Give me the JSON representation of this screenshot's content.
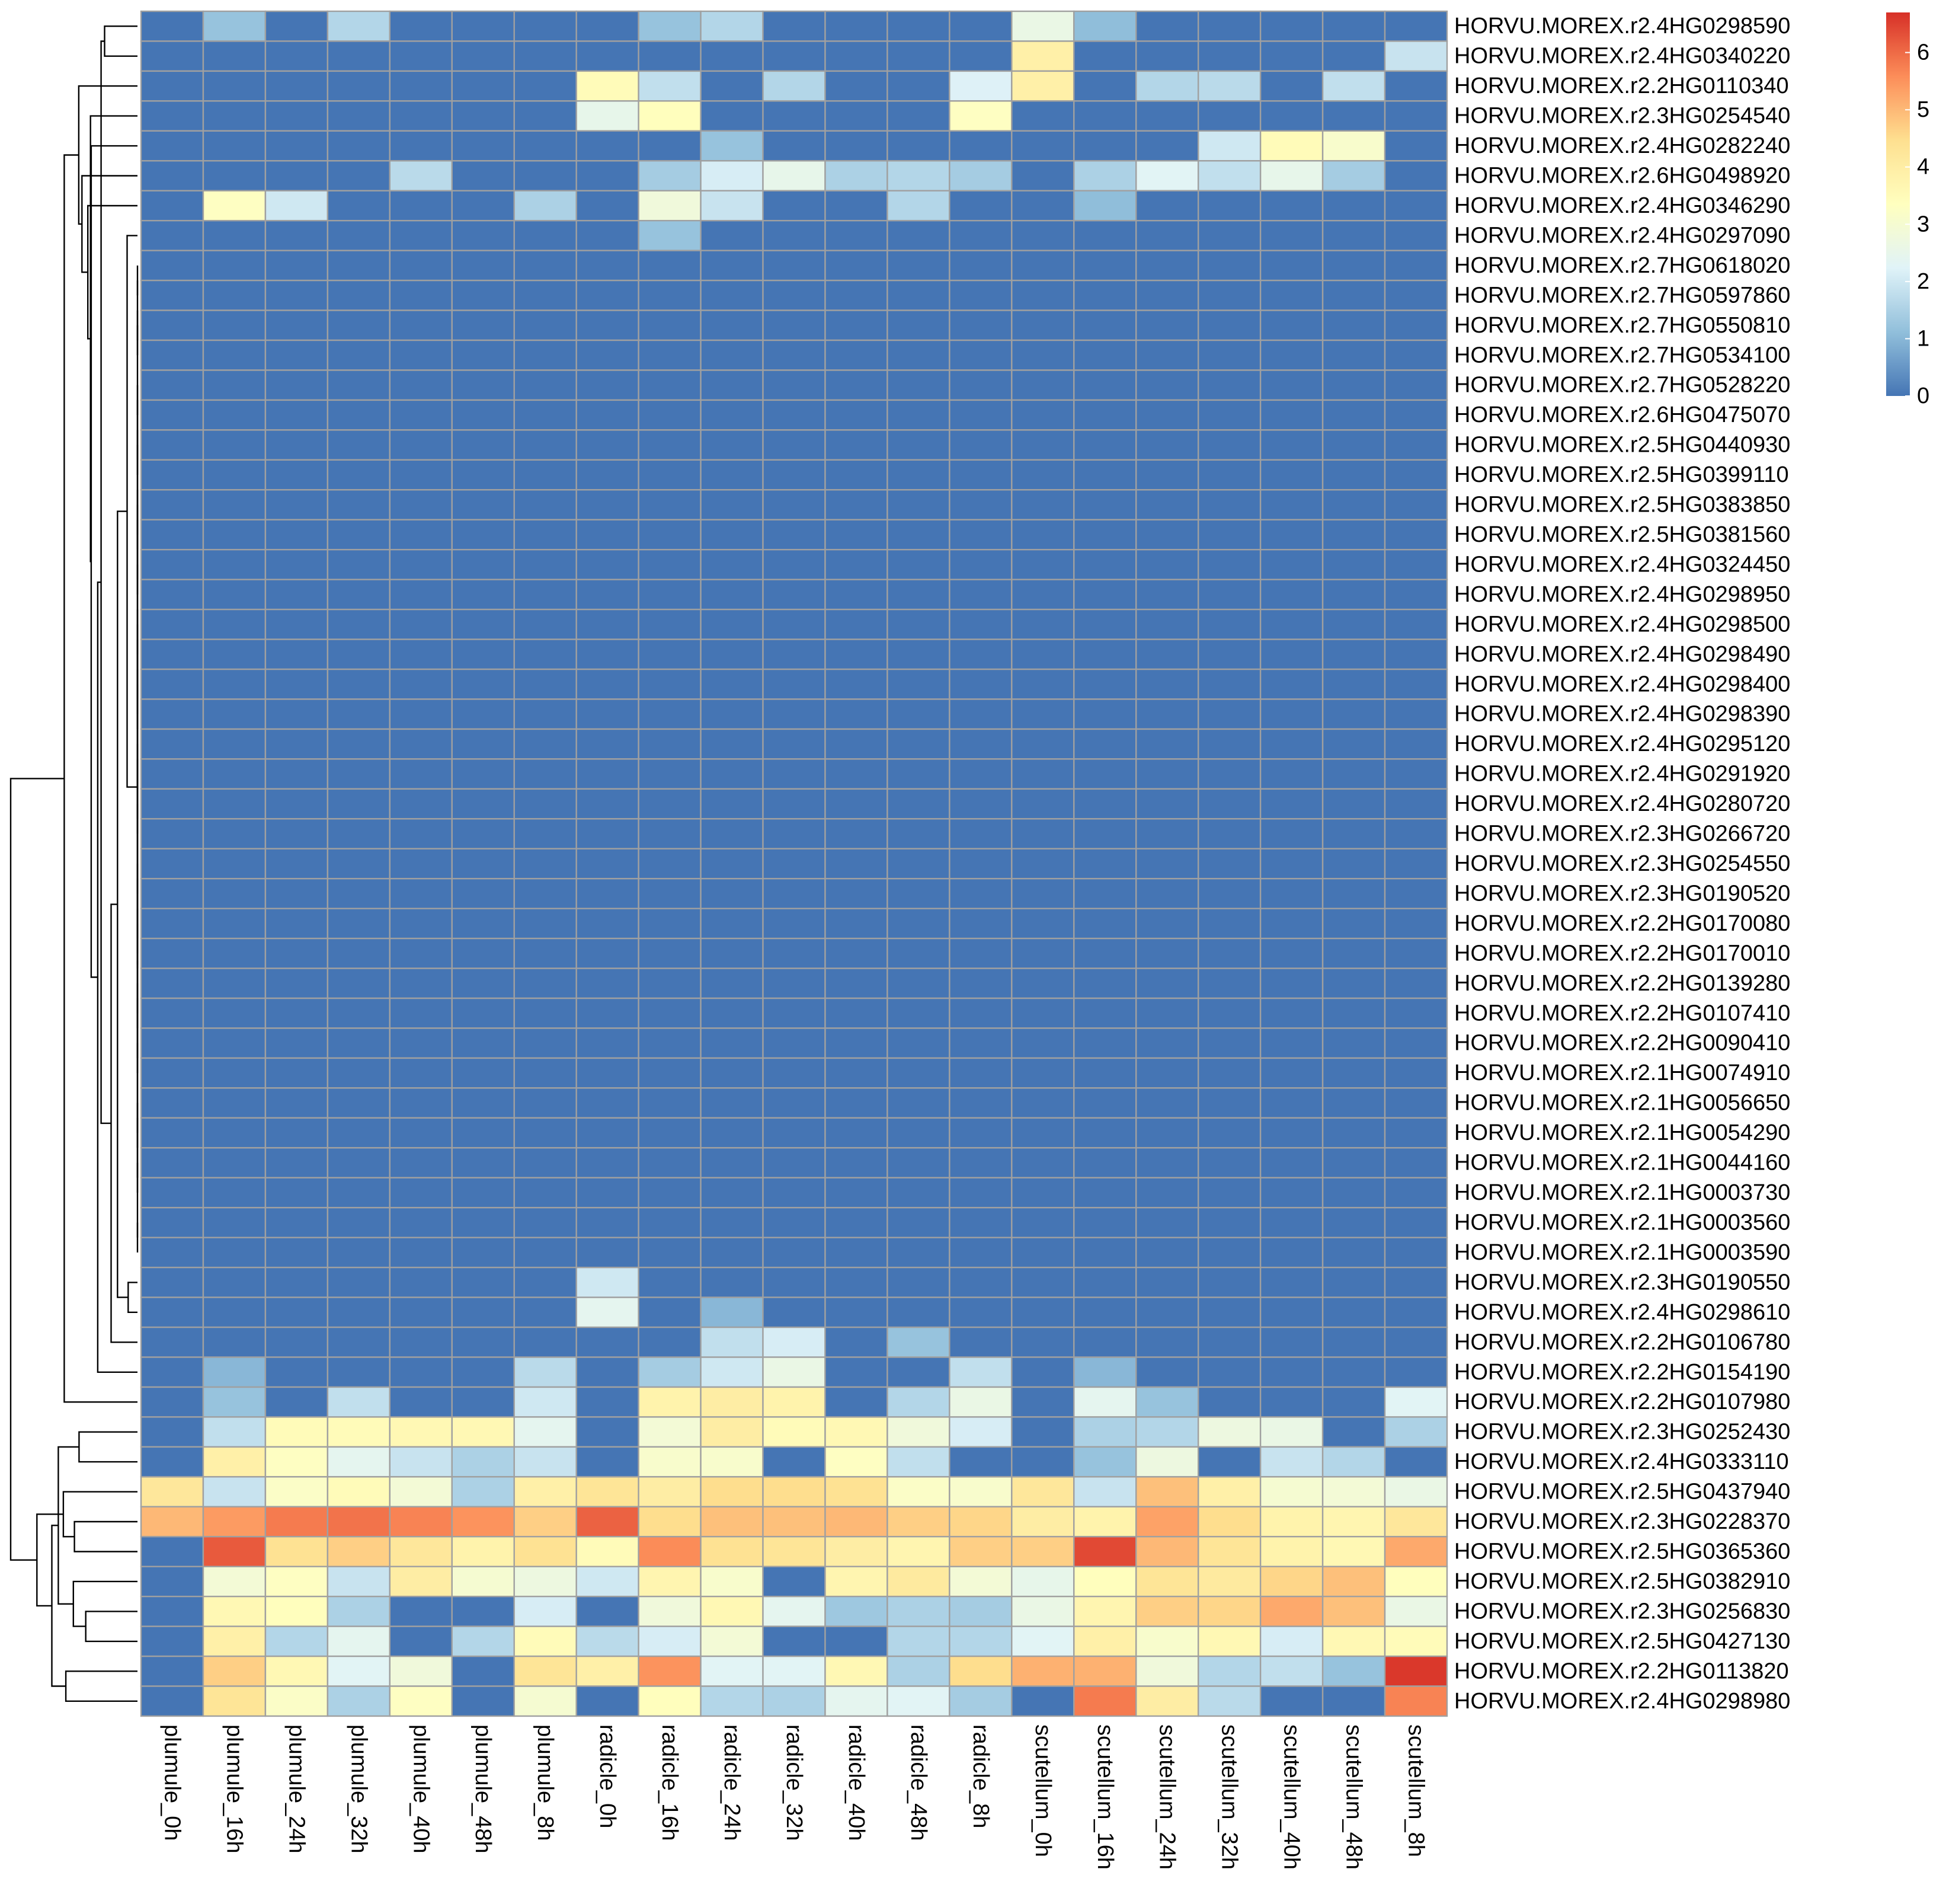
{
  "chart_data": {
    "type": "heatmap",
    "title": "",
    "xlabel": "",
    "ylabel": "",
    "columns": [
      "plumule_0h",
      "plumule_16h",
      "plumule_24h",
      "plumule_32h",
      "plumule_40h",
      "plumule_48h",
      "plumule_8h",
      "radicle_0h",
      "radicle_16h",
      "radicle_24h",
      "radicle_32h",
      "radicle_40h",
      "radicle_48h",
      "radicle_8h",
      "scutellum_0h",
      "scutellum_16h",
      "scutellum_24h",
      "scutellum_32h",
      "scutellum_40h",
      "scutellum_48h",
      "scutellum_8h"
    ],
    "rows": [
      "HORVU.MOREX.r2.4HG0298590",
      "HORVU.MOREX.r2.4HG0340220",
      "HORVU.MOREX.r2.2HG0110340",
      "HORVU.MOREX.r2.3HG0254540",
      "HORVU.MOREX.r2.4HG0282240",
      "HORVU.MOREX.r2.6HG0498920",
      "HORVU.MOREX.r2.4HG0346290",
      "HORVU.MOREX.r2.4HG0297090",
      "HORVU.MOREX.r2.7HG0618020",
      "HORVU.MOREX.r2.7HG0597860",
      "HORVU.MOREX.r2.7HG0550810",
      "HORVU.MOREX.r2.7HG0534100",
      "HORVU.MOREX.r2.7HG0528220",
      "HORVU.MOREX.r2.6HG0475070",
      "HORVU.MOREX.r2.5HG0440930",
      "HORVU.MOREX.r2.5HG0399110",
      "HORVU.MOREX.r2.5HG0383850",
      "HORVU.MOREX.r2.5HG0381560",
      "HORVU.MOREX.r2.4HG0324450",
      "HORVU.MOREX.r2.4HG0298950",
      "HORVU.MOREX.r2.4HG0298500",
      "HORVU.MOREX.r2.4HG0298490",
      "HORVU.MOREX.r2.4HG0298400",
      "HORVU.MOREX.r2.4HG0298390",
      "HORVU.MOREX.r2.4HG0295120",
      "HORVU.MOREX.r2.4HG0291920",
      "HORVU.MOREX.r2.4HG0280720",
      "HORVU.MOREX.r2.3HG0266720",
      "HORVU.MOREX.r2.3HG0254550",
      "HORVU.MOREX.r2.3HG0190520",
      "HORVU.MOREX.r2.2HG0170080",
      "HORVU.MOREX.r2.2HG0170010",
      "HORVU.MOREX.r2.2HG0139280",
      "HORVU.MOREX.r2.2HG0107410",
      "HORVU.MOREX.r2.2HG0090410",
      "HORVU.MOREX.r2.1HG0074910",
      "HORVU.MOREX.r2.1HG0056650",
      "HORVU.MOREX.r2.1HG0054290",
      "HORVU.MOREX.r2.1HG0044160",
      "HORVU.MOREX.r2.1HG0003730",
      "HORVU.MOREX.r2.1HG0003560",
      "HORVU.MOREX.r2.1HG0003590",
      "HORVU.MOREX.r2.3HG0190550",
      "HORVU.MOREX.r2.4HG0298610",
      "HORVU.MOREX.r2.2HG0106780",
      "HORVU.MOREX.r2.2HG0154190",
      "HORVU.MOREX.r2.2HG0107980",
      "HORVU.MOREX.r2.3HG0252430",
      "HORVU.MOREX.r2.4HG0333110",
      "HORVU.MOREX.r2.5HG0437940",
      "HORVU.MOREX.r2.3HG0228370",
      "HORVU.MOREX.r2.5HG0365360",
      "HORVU.MOREX.r2.5HG0382910",
      "HORVU.MOREX.r2.3HG0256830",
      "HORVU.MOREX.r2.5HG0427130",
      "HORVU.MOREX.r2.2HG0113820",
      "HORVU.MOREX.r2.4HG0298980"
    ],
    "values": [
      [
        0,
        1.2,
        0,
        1.6,
        0,
        0,
        0,
        0,
        1.2,
        1.6,
        0,
        0,
        0,
        0,
        2.6,
        1.1,
        0,
        0,
        0,
        0,
        0
      ],
      [
        0,
        0,
        0,
        0,
        0,
        0,
        0,
        0,
        0,
        0,
        0,
        0,
        0,
        0,
        3.9,
        0,
        0,
        0,
        0,
        0,
        1.9
      ],
      [
        0,
        0,
        0,
        0,
        0,
        0,
        0,
        3.5,
        1.8,
        0,
        1.6,
        0,
        0,
        2.2,
        3.9,
        0,
        1.6,
        1.7,
        0,
        1.8,
        0
      ],
      [
        0,
        0,
        0,
        0,
        0,
        0,
        0,
        2.5,
        3.4,
        0,
        0,
        0,
        0,
        3.3,
        0,
        0,
        0,
        0,
        0,
        0,
        0
      ],
      [
        0,
        0,
        0,
        0,
        0,
        0,
        0,
        0,
        0,
        1.2,
        0,
        0,
        0,
        0,
        0,
        0,
        0,
        2,
        3.5,
        3.1,
        0
      ],
      [
        0,
        0,
        0,
        0,
        1.7,
        0,
        0,
        0,
        1.4,
        2.1,
        2.5,
        1.5,
        1.6,
        1.4,
        0,
        1.5,
        2.3,
        1.8,
        2.5,
        1.4,
        0
      ],
      [
        0,
        3.3,
        2,
        0,
        0,
        0,
        1.5,
        0,
        2.8,
        1.9,
        0,
        0,
        1.6,
        0,
        0,
        1.1,
        0,
        0,
        0,
        0,
        0
      ],
      [
        0,
        0,
        0,
        0,
        0,
        0,
        0,
        0,
        1.2,
        0,
        0,
        0,
        0,
        0,
        0,
        0,
        0,
        0,
        0,
        0,
        0
      ],
      [
        0,
        0,
        0,
        0,
        0,
        0,
        0,
        0,
        0,
        0,
        0,
        0,
        0,
        0,
        0,
        0,
        0,
        0,
        0,
        0,
        0
      ],
      [
        0,
        0,
        0,
        0,
        0,
        0,
        0,
        0,
        0,
        0,
        0,
        0,
        0,
        0,
        0,
        0,
        0,
        0,
        0,
        0,
        0
      ],
      [
        0,
        0,
        0,
        0,
        0,
        0,
        0,
        0,
        0,
        0,
        0,
        0,
        0,
        0,
        0,
        0,
        0,
        0,
        0,
        0,
        0
      ],
      [
        0,
        0,
        0,
        0,
        0,
        0,
        0,
        0,
        0,
        0,
        0,
        0,
        0,
        0,
        0,
        0,
        0,
        0,
        0,
        0,
        0
      ],
      [
        0,
        0,
        0,
        0,
        0,
        0,
        0,
        0,
        0,
        0,
        0,
        0,
        0,
        0,
        0,
        0,
        0,
        0,
        0,
        0,
        0
      ],
      [
        0,
        0,
        0,
        0,
        0,
        0,
        0,
        0,
        0,
        0,
        0,
        0,
        0,
        0,
        0,
        0,
        0,
        0,
        0,
        0,
        0
      ],
      [
        0,
        0,
        0,
        0,
        0,
        0,
        0,
        0,
        0,
        0,
        0,
        0,
        0,
        0,
        0,
        0,
        0,
        0,
        0,
        0,
        0
      ],
      [
        0,
        0,
        0,
        0,
        0,
        0,
        0,
        0,
        0,
        0,
        0,
        0,
        0,
        0,
        0,
        0,
        0,
        0,
        0,
        0,
        0
      ],
      [
        0,
        0,
        0,
        0,
        0,
        0,
        0,
        0,
        0,
        0,
        0,
        0,
        0,
        0,
        0,
        0,
        0,
        0,
        0,
        0,
        0
      ],
      [
        0,
        0,
        0,
        0,
        0,
        0,
        0,
        0,
        0,
        0,
        0,
        0,
        0,
        0,
        0,
        0,
        0,
        0,
        0,
        0,
        0
      ],
      [
        0,
        0,
        0,
        0,
        0,
        0,
        0,
        0,
        0,
        0,
        0,
        0,
        0,
        0,
        0,
        0,
        0,
        0,
        0,
        0,
        0
      ],
      [
        0,
        0,
        0,
        0,
        0,
        0,
        0,
        0,
        0,
        0,
        0,
        0,
        0,
        0,
        0,
        0,
        0,
        0,
        0,
        0,
        0
      ],
      [
        0,
        0,
        0,
        0,
        0,
        0,
        0,
        0,
        0,
        0,
        0,
        0,
        0,
        0,
        0,
        0,
        0,
        0,
        0,
        0,
        0
      ],
      [
        0,
        0,
        0,
        0,
        0,
        0,
        0,
        0,
        0,
        0,
        0,
        0,
        0,
        0,
        0,
        0,
        0,
        0,
        0,
        0,
        0
      ],
      [
        0,
        0,
        0,
        0,
        0,
        0,
        0,
        0,
        0,
        0,
        0,
        0,
        0,
        0,
        0,
        0,
        0,
        0,
        0,
        0,
        0
      ],
      [
        0,
        0,
        0,
        0,
        0,
        0,
        0,
        0,
        0,
        0,
        0,
        0,
        0,
        0,
        0,
        0,
        0,
        0,
        0,
        0,
        0
      ],
      [
        0,
        0,
        0,
        0,
        0,
        0,
        0,
        0,
        0,
        0,
        0,
        0,
        0,
        0,
        0,
        0,
        0,
        0,
        0,
        0,
        0
      ],
      [
        0,
        0,
        0,
        0,
        0,
        0,
        0,
        0,
        0,
        0,
        0,
        0,
        0,
        0,
        0,
        0,
        0,
        0,
        0,
        0,
        0
      ],
      [
        0,
        0,
        0,
        0,
        0,
        0,
        0,
        0,
        0,
        0,
        0,
        0,
        0,
        0,
        0,
        0,
        0,
        0,
        0,
        0,
        0
      ],
      [
        0,
        0,
        0,
        0,
        0,
        0,
        0,
        0,
        0,
        0,
        0,
        0,
        0,
        0,
        0,
        0,
        0,
        0,
        0,
        0,
        0
      ],
      [
        0,
        0,
        0,
        0,
        0,
        0,
        0,
        0,
        0,
        0,
        0,
        0,
        0,
        0,
        0,
        0,
        0,
        0,
        0,
        0,
        0
      ],
      [
        0,
        0,
        0,
        0,
        0,
        0,
        0,
        0,
        0,
        0,
        0,
        0,
        0,
        0,
        0,
        0,
        0,
        0,
        0,
        0,
        0
      ],
      [
        0,
        0,
        0,
        0,
        0,
        0,
        0,
        0,
        0,
        0,
        0,
        0,
        0,
        0,
        0,
        0,
        0,
        0,
        0,
        0,
        0
      ],
      [
        0,
        0,
        0,
        0,
        0,
        0,
        0,
        0,
        0,
        0,
        0,
        0,
        0,
        0,
        0,
        0,
        0,
        0,
        0,
        0,
        0
      ],
      [
        0,
        0,
        0,
        0,
        0,
        0,
        0,
        0,
        0,
        0,
        0,
        0,
        0,
        0,
        0,
        0,
        0,
        0,
        0,
        0,
        0
      ],
      [
        0,
        0,
        0,
        0,
        0,
        0,
        0,
        0,
        0,
        0,
        0,
        0,
        0,
        0,
        0,
        0,
        0,
        0,
        0,
        0,
        0
      ],
      [
        0,
        0,
        0,
        0,
        0,
        0,
        0,
        0,
        0,
        0,
        0,
        0,
        0,
        0,
        0,
        0,
        0,
        0,
        0,
        0,
        0
      ],
      [
        0,
        0,
        0,
        0,
        0,
        0,
        0,
        0,
        0,
        0,
        0,
        0,
        0,
        0,
        0,
        0,
        0,
        0,
        0,
        0,
        0
      ],
      [
        0,
        0,
        0,
        0,
        0,
        0,
        0,
        0,
        0,
        0,
        0,
        0,
        0,
        0,
        0,
        0,
        0,
        0,
        0,
        0,
        0
      ],
      [
        0,
        0,
        0,
        0,
        0,
        0,
        0,
        0,
        0,
        0,
        0,
        0,
        0,
        0,
        0,
        0,
        0,
        0,
        0,
        0,
        0
      ],
      [
        0,
        0,
        0,
        0,
        0,
        0,
        0,
        0,
        0,
        0,
        0,
        0,
        0,
        0,
        0,
        0,
        0,
        0,
        0,
        0,
        0
      ],
      [
        0,
        0,
        0,
        0,
        0,
        0,
        0,
        0,
        0,
        0,
        0,
        0,
        0,
        0,
        0,
        0,
        0,
        0,
        0,
        0,
        0
      ],
      [
        0,
        0,
        0,
        0,
        0,
        0,
        0,
        0,
        0,
        0,
        0,
        0,
        0,
        0,
        0,
        0,
        0,
        0,
        0,
        0,
        0
      ],
      [
        0,
        0,
        0,
        0,
        0,
        0,
        0,
        0,
        0,
        0,
        0,
        0,
        0,
        0,
        0,
        0,
        0,
        0,
        0,
        0,
        0
      ],
      [
        0,
        0,
        0,
        0,
        0,
        0,
        0,
        2,
        0,
        0,
        0,
        0,
        0,
        0,
        0,
        0,
        0,
        0,
        0,
        0,
        0
      ],
      [
        0,
        0,
        0,
        0,
        0,
        0,
        0,
        2.4,
        0,
        1,
        0,
        0,
        0,
        0,
        0,
        0,
        0,
        0,
        0,
        0,
        0
      ],
      [
        0,
        0,
        0,
        0,
        0,
        0,
        0,
        0,
        0,
        1.8,
        2.1,
        0,
        1.2,
        0,
        0,
        0,
        0,
        0,
        0,
        0,
        0
      ],
      [
        0,
        1,
        0,
        0,
        0,
        0,
        1.7,
        0,
        1.4,
        2,
        2.6,
        0,
        0,
        1.8,
        0,
        1,
        0,
        0,
        0,
        0,
        0
      ],
      [
        0,
        1.2,
        0,
        1.8,
        0,
        0,
        2,
        0,
        3.8,
        4,
        3.8,
        0,
        1.6,
        2.6,
        0,
        2.4,
        1.2,
        0,
        0,
        0,
        2.3
      ],
      [
        0,
        1.8,
        3.5,
        3.5,
        3.6,
        3.6,
        2.4,
        0,
        2.9,
        4,
        3.5,
        3.6,
        2.8,
        2.1,
        0,
        1.5,
        1.6,
        2.7,
        2.6,
        0,
        1.5
      ],
      [
        0,
        3.9,
        3.3,
        2.4,
        1.9,
        1.5,
        1.9,
        0,
        3.1,
        3.1,
        0,
        3.3,
        1.8,
        0,
        0,
        1.2,
        2.7,
        0,
        1.9,
        1.6,
        0
      ],
      [
        4.2,
        1.9,
        3.2,
        3.5,
        2.9,
        1.5,
        3.9,
        4.3,
        4,
        4.5,
        4.5,
        4.4,
        3.2,
        3.1,
        4.2,
        1.9,
        4.9,
        3.9,
        3,
        2.9,
        2.6
      ],
      [
        5,
        5.4,
        5.8,
        5.9,
        5.7,
        5.5,
        4.7,
        6.1,
        4.5,
        4.9,
        4.9,
        5,
        4.7,
        4.6,
        4,
        3.8,
        5.3,
        4.5,
        3.8,
        3.7,
        4.2
      ],
      [
        0,
        6.2,
        4.4,
        4.7,
        4.2,
        3.8,
        4.4,
        3.5,
        5.6,
        4.4,
        4.3,
        4,
        3.7,
        4.7,
        4.7,
        6.4,
        5,
        4.3,
        3.8,
        3.6,
        5.2
      ],
      [
        0,
        2.9,
        3.3,
        1.9,
        4,
        3,
        2.7,
        2,
        3.7,
        3.1,
        0,
        3.7,
        4.1,
        2.9,
        2.5,
        3.4,
        4.3,
        4.1,
        4.6,
        4.9,
        3.4
      ],
      [
        0,
        3.6,
        3.4,
        1.5,
        0,
        0,
        2.1,
        0,
        2.8,
        3.6,
        2.4,
        1.3,
        1.5,
        1.4,
        2.6,
        3.7,
        4.7,
        4.6,
        5.2,
        4.9,
        2.6
      ],
      [
        0,
        3.9,
        1.6,
        2.4,
        0,
        1.6,
        3.5,
        1.7,
        2.1,
        2.9,
        0,
        0,
        1.6,
        1.6,
        2.3,
        3.9,
        3.1,
        3.6,
        2.1,
        3.6,
        3.5
      ],
      [
        0,
        4.7,
        3.6,
        2.3,
        2.8,
        0,
        4.3,
        3.9,
        5.5,
        2.3,
        2.3,
        3.6,
        1.5,
        4.5,
        5.1,
        5.1,
        2.8,
        1.6,
        1.8,
        1.2,
        6.6
      ],
      [
        0,
        4.3,
        3.2,
        1.5,
        3.3,
        0,
        3,
        0,
        3.4,
        1.6,
        1.5,
        2.4,
        2.3,
        1.4,
        0,
        5.8,
        4,
        1.7,
        0,
        0,
        5.7
      ]
    ],
    "scale_min": 0,
    "scale_max": 6.7,
    "colorbar_ticks": [
      "0",
      "1",
      "2",
      "3",
      "4",
      "5",
      "6"
    ],
    "colors": [
      "#4575b4",
      "#91bfdb",
      "#e0f3f8",
      "#ffffbf",
      "#fee090",
      "#fc8d59",
      "#d73027"
    ],
    "cell_border_color": "#a0a0a0",
    "legend": "top-right",
    "row_dendrogram": true,
    "row_order": [
      0,
      1,
      2,
      3,
      4,
      5,
      6,
      7,
      8,
      9,
      10,
      11,
      12,
      13,
      14,
      15,
      16,
      17,
      18,
      19,
      20,
      21,
      22,
      23,
      24,
      25,
      26,
      27,
      28,
      29,
      30,
      31,
      32,
      33,
      34,
      35,
      36,
      37,
      38,
      39,
      40,
      41,
      42,
      43,
      44,
      45,
      46,
      47,
      48,
      49,
      50,
      51,
      52,
      53,
      54,
      55,
      56
    ]
  }
}
